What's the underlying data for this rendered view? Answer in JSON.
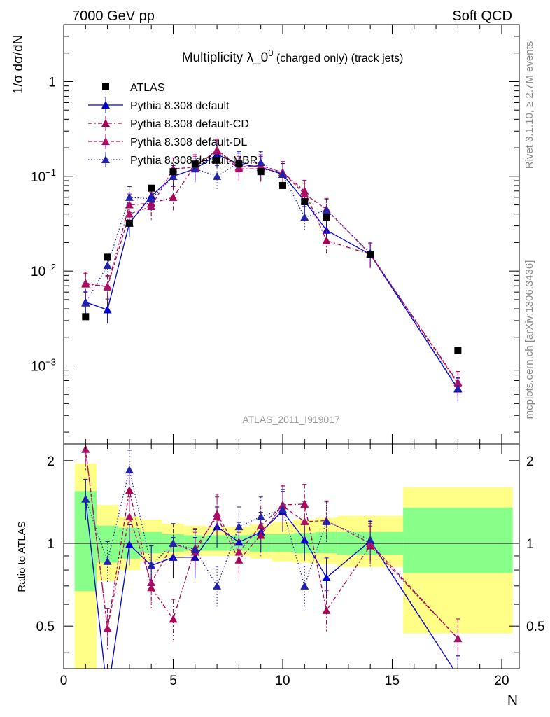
{
  "header": {
    "left": "7000 GeV pp",
    "right": "Soft QCD"
  },
  "side_labels": {
    "rivet": "Rivet 3.1.10, ≥ 2.7M events",
    "mcplots": "mcplots.cern.ch [arXiv:1306.3436]"
  },
  "colors": {
    "atlas": "#000000",
    "default": "#0000cc",
    "cd": "#aa0055",
    "dl": "#aa1166",
    "mbr": "#2222aa",
    "band_yellow": "#ffff88",
    "band_green": "#88ff88"
  },
  "chart_data": [
    {
      "type": "scatter",
      "title": "Multiplicity λ_0",
      "title_sup": "0",
      "title_suffix": " (charged only) (track jets)",
      "ylabel": "1/σ dσ/dN",
      "analysis_label": "ATLAS_2011_I919017",
      "yscale": "log",
      "xlim": [
        0,
        20.8
      ],
      "ylim": [
        0.00015,
        4
      ],
      "y_ticks": [
        {
          "label": "1",
          "value": 1
        },
        {
          "label": "10",
          "sup": "−1",
          "value": 0.1
        },
        {
          "label": "10",
          "sup": "−2",
          "value": 0.01
        },
        {
          "label": "10",
          "sup": "−3",
          "value": 0.001
        }
      ],
      "legend_position": "top-left",
      "series": [
        {
          "name": "ATLAS",
          "key": "atlas",
          "marker": "square",
          "x": [
            1,
            2,
            3,
            4,
            5,
            6,
            7,
            8,
            9,
            10,
            11,
            12,
            14,
            18
          ],
          "y": [
            0.0033,
            0.014,
            0.032,
            0.075,
            0.112,
            0.135,
            0.148,
            0.135,
            0.112,
            0.08,
            0.054,
            0.037,
            0.015,
            0.00145
          ]
        },
        {
          "name": "Pythia 8.308 default",
          "key": "default",
          "marker": "triangle",
          "line": "solid",
          "x": [
            1,
            2,
            3,
            4,
            5,
            6,
            7,
            8,
            9,
            10,
            11,
            12,
            14,
            18
          ],
          "y": [
            0.0047,
            0.0039,
            0.032,
            0.062,
            0.1,
            0.12,
            0.17,
            0.135,
            0.125,
            0.105,
            0.055,
            0.027,
            0.015,
            0.00057
          ]
        },
        {
          "name": "Pythia 8.308 default-CD",
          "key": "cd",
          "marker": "triangle",
          "line": "dashdot",
          "x": [
            1,
            2,
            3,
            4,
            5,
            6,
            7,
            8,
            9,
            10,
            11,
            12,
            14,
            18
          ],
          "y": [
            0.0073,
            0.0069,
            0.05,
            0.052,
            0.06,
            0.13,
            0.185,
            0.12,
            0.12,
            0.11,
            0.07,
            0.021,
            0.015,
            0.00067
          ]
        },
        {
          "name": "Pythia 8.308 default-DL",
          "key": "dl",
          "marker": "triangle",
          "line": "dashed",
          "x": [
            1,
            2,
            3,
            4,
            5,
            6,
            7,
            8,
            9,
            10,
            11,
            12,
            14,
            18
          ],
          "y": [
            0.0075,
            0.0068,
            0.04,
            0.048,
            0.12,
            0.125,
            0.19,
            0.125,
            0.13,
            0.11,
            0.065,
            0.045,
            0.015,
            0.00065
          ]
        },
        {
          "name": "Pythia 8.308 default-MBR",
          "key": "mbr",
          "marker": "triangle",
          "line": "dotted",
          "x": [
            1,
            2,
            3,
            4,
            5,
            6,
            7,
            8,
            9,
            10,
            11,
            12,
            14,
            18
          ],
          "y": [
            0.0046,
            0.0115,
            0.06,
            0.058,
            0.1,
            0.12,
            0.1,
            0.14,
            0.14,
            0.105,
            0.037,
            0.044,
            0.0155,
            0.00058
          ]
        }
      ]
    },
    {
      "type": "scatter",
      "ylabel": "Ratio to ATLAS",
      "xlabel": "N",
      "xlim": [
        0,
        20.8
      ],
      "ylim": [
        0.35,
        2.3
      ],
      "reference_line": 1,
      "x_ticks": [
        0,
        5,
        10,
        15,
        20
      ],
      "y_ticks": [
        0.5,
        1,
        2
      ],
      "bands": [
        {
          "x0": 0.5,
          "x1": 1.5,
          "y_lo": 0.35,
          "y_hi": 1.95,
          "g_lo": 0.67,
          "g_hi": 1.55
        },
        {
          "x0": 1.5,
          "x1": 2.5,
          "y_lo": 0.73,
          "y_hi": 1.38,
          "g_lo": 0.85,
          "g_hi": 1.16
        },
        {
          "x0": 2.5,
          "x1": 3.5,
          "y_lo": 0.8,
          "y_hi": 1.25,
          "g_lo": 0.88,
          "g_hi": 1.14
        },
        {
          "x0": 3.5,
          "x1": 4.5,
          "y_lo": 0.86,
          "y_hi": 1.22,
          "g_lo": 0.92,
          "g_hi": 1.1
        },
        {
          "x0": 4.5,
          "x1": 5.5,
          "y_lo": 0.88,
          "y_hi": 1.18,
          "g_lo": 0.93,
          "g_hi": 1.08
        },
        {
          "x0": 5.5,
          "x1": 6.5,
          "y_lo": 0.9,
          "y_hi": 1.16,
          "g_lo": 0.94,
          "g_hi": 1.07
        },
        {
          "x0": 6.5,
          "x1": 7.5,
          "y_lo": 0.9,
          "y_hi": 1.15,
          "g_lo": 0.94,
          "g_hi": 1.07
        },
        {
          "x0": 7.5,
          "x1": 8.5,
          "y_lo": 0.9,
          "y_hi": 1.15,
          "g_lo": 0.94,
          "g_hi": 1.07
        },
        {
          "x0": 8.5,
          "x1": 9.5,
          "y_lo": 0.88,
          "y_hi": 1.17,
          "g_lo": 0.93,
          "g_hi": 1.08
        },
        {
          "x0": 9.5,
          "x1": 10.5,
          "y_lo": 0.86,
          "y_hi": 1.2,
          "g_lo": 0.93,
          "g_hi": 1.08
        },
        {
          "x0": 10.5,
          "x1": 11.5,
          "y_lo": 0.85,
          "y_hi": 1.22,
          "g_lo": 0.92,
          "g_hi": 1.09
        },
        {
          "x0": 11.5,
          "x1": 12.5,
          "y_lo": 0.84,
          "y_hi": 1.24,
          "g_lo": 0.92,
          "g_hi": 1.1
        },
        {
          "x0": 12.5,
          "x1": 15.5,
          "y_lo": 0.82,
          "y_hi": 1.26,
          "g_lo": 0.91,
          "g_hi": 1.1
        },
        {
          "x0": 15.5,
          "x1": 20.5,
          "y_lo": 0.47,
          "y_hi": 1.6,
          "g_lo": 0.78,
          "g_hi": 1.35
        }
      ],
      "series": [
        {
          "name": "Pythia 8.308 default",
          "key": "default",
          "line": "solid",
          "x": [
            1,
            2,
            3,
            4,
            5,
            6,
            7,
            8,
            9,
            10,
            11,
            12,
            14,
            18
          ],
          "y": [
            1.45,
            0.28,
            0.99,
            0.83,
            0.89,
            0.89,
            1.15,
            1.01,
            1.1,
            1.31,
            1.03,
            0.75,
            1.02,
            0.33
          ]
        },
        {
          "name": "Pythia 8.308 default-CD",
          "key": "cd",
          "line": "dashdot",
          "x": [
            1,
            2,
            3,
            4,
            5,
            6,
            7,
            8,
            9,
            10,
            11,
            12,
            14,
            18
          ],
          "y": [
            2.2,
            0.49,
            1.56,
            0.69,
            0.53,
            0.96,
            1.25,
            0.87,
            1.07,
            1.38,
            1.39,
            0.57,
            0.98,
            0.45
          ]
        },
        {
          "name": "Pythia 8.308 default-DL",
          "key": "dl",
          "line": "dashed",
          "x": [
            1,
            2,
            3,
            4,
            5,
            6,
            7,
            8,
            9,
            10,
            11,
            12,
            14,
            18
          ],
          "y": [
            2.2,
            0.49,
            1.25,
            0.72,
            1.0,
            0.93,
            1.28,
            0.93,
            1.16,
            1.37,
            1.2,
            1.21,
            1.0,
            0.45
          ]
        },
        {
          "name": "Pythia 8.308 default-MBR",
          "key": "mbr",
          "line": "dotted",
          "x": [
            1,
            2,
            3,
            4,
            5,
            6,
            7,
            8,
            9,
            10,
            11,
            12,
            14,
            18
          ],
          "y": [
            1.45,
            0.86,
            1.85,
            0.83,
            1.0,
            0.95,
            0.7,
            1.15,
            1.25,
            1.33,
            0.7,
            1.2,
            1.03,
            0.33
          ]
        }
      ]
    }
  ]
}
